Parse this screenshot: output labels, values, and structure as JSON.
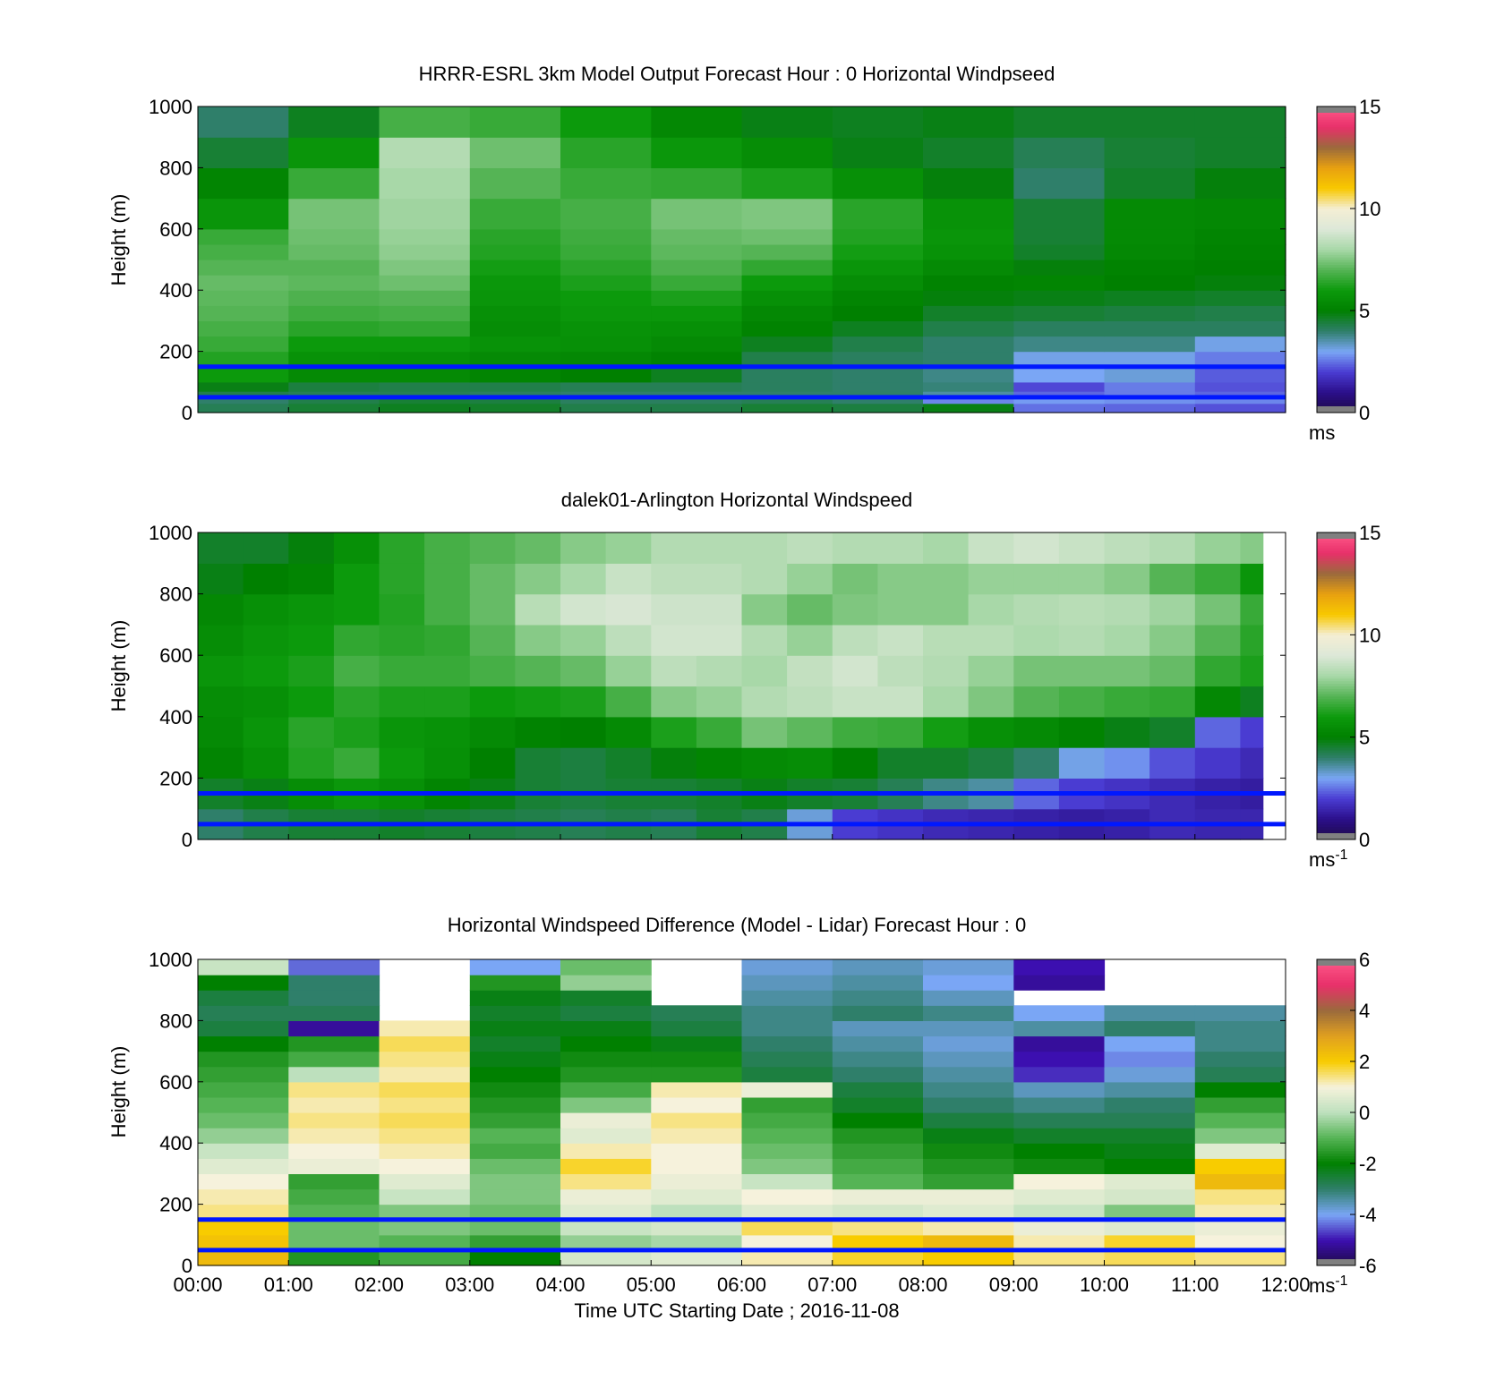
{
  "chart_data": [
    {
      "type": "heatmap",
      "title": "HRRR-ESRL 3km Model Output   Forecast Hour : 0 Horizontal Windpseed",
      "xlabel": "",
      "ylabel": "Height (m)",
      "xlim": [
        0,
        12
      ],
      "ylim": [
        0,
        1000
      ],
      "y_ticks": [
        "0",
        "200",
        "400",
        "600",
        "800",
        "1000"
      ],
      "x_tick_hours": [
        0,
        1,
        2,
        3,
        4,
        5,
        6,
        7,
        8,
        9,
        10,
        11,
        12
      ],
      "x_ticklabels_shown": false,
      "colorbar": {
        "min": 0,
        "max": 15,
        "ticks": [
          "0",
          "5",
          "10",
          "15"
        ],
        "unit": "ms",
        "unit_sup": ""
      },
      "levels_m": [
        0,
        30,
        50,
        70,
        100,
        150,
        200,
        250,
        300,
        350,
        400,
        450,
        500,
        550,
        600,
        700,
        800,
        900,
        1000
      ],
      "columns_hours": [
        0,
        1,
        2,
        3,
        4,
        5,
        6,
        7,
        8,
        9,
        10,
        11,
        12
      ],
      "values": [
        [
          4.2,
          4.5,
          4.7,
          4.6,
          4.3,
          4.3,
          4.5,
          4.4,
          4.8,
          2.5,
          2.4,
          2.2
        ],
        [
          4.0,
          4.3,
          4.5,
          4.4,
          4.1,
          4.1,
          4.2,
          4.0,
          2.7,
          2.9,
          2.8,
          2.7
        ],
        [
          4.3,
          4.2,
          4.2,
          4.1,
          4.0,
          4.0,
          4.0,
          4.0,
          3.6,
          2.4,
          2.6,
          2.4
        ],
        [
          4.8,
          4.4,
          4.3,
          4.3,
          4.2,
          4.2,
          4.1,
          4.0,
          3.9,
          2.1,
          2.6,
          2.2
        ],
        [
          6.0,
          5.4,
          5.4,
          5.2,
          5.0,
          4.7,
          4.1,
          4.0,
          3.8,
          3.0,
          3.2,
          2.3
        ],
        [
          6.3,
          5.7,
          5.6,
          5.4,
          5.3,
          5.1,
          4.3,
          4.1,
          4.0,
          3.1,
          3.1,
          2.6
        ],
        [
          6.6,
          6.0,
          6.0,
          5.7,
          5.6,
          5.4,
          4.7,
          4.3,
          4.0,
          3.8,
          3.8,
          3.1
        ],
        [
          6.8,
          6.4,
          6.5,
          5.5,
          5.7,
          5.6,
          5.1,
          4.7,
          4.3,
          4.1,
          4.1,
          4.1
        ],
        [
          7.0,
          6.7,
          6.8,
          5.6,
          5.9,
          5.9,
          5.3,
          5.0,
          4.6,
          4.5,
          4.4,
          4.3
        ],
        [
          7.1,
          6.9,
          7.0,
          5.8,
          6.0,
          6.2,
          5.6,
          5.2,
          4.9,
          4.8,
          4.7,
          4.6
        ],
        [
          7.2,
          7.1,
          7.3,
          5.9,
          6.2,
          6.6,
          6.0,
          5.5,
          5.1,
          5.2,
          5.0,
          4.9
        ],
        [
          7.0,
          7.0,
          7.5,
          6.1,
          6.4,
          6.9,
          6.5,
          5.8,
          5.4,
          4.9,
          5.1,
          5.0
        ],
        [
          6.8,
          7.2,
          7.7,
          6.3,
          6.6,
          7.1,
          7.0,
          6.1,
          5.7,
          4.6,
          5.3,
          5.1
        ],
        [
          6.6,
          7.3,
          7.8,
          6.4,
          6.7,
          7.2,
          7.3,
          6.3,
          5.8,
          4.5,
          5.4,
          5.2
        ],
        [
          5.8,
          7.4,
          7.9,
          6.6,
          6.8,
          7.4,
          7.5,
          6.4,
          5.7,
          4.5,
          5.4,
          5.3
        ],
        [
          5.2,
          6.6,
          8.0,
          7.0,
          6.6,
          6.5,
          6.2,
          5.6,
          4.9,
          4.0,
          4.6,
          4.9
        ],
        [
          4.5,
          5.8,
          8.2,
          7.3,
          6.4,
          5.9,
          5.5,
          4.8,
          4.6,
          4.2,
          4.5,
          4.6
        ],
        [
          4.0,
          4.7,
          6.8,
          6.6,
          6.0,
          5.3,
          4.8,
          4.7,
          4.8,
          4.6,
          4.6,
          4.6
        ]
      ],
      "overlay_lines_m": [
        150,
        50
      ]
    },
    {
      "type": "heatmap",
      "title": "dalek01-Arlington  Horizontal Windspeed",
      "xlabel": "",
      "ylabel": "Height (m)",
      "xlim": [
        0,
        12
      ],
      "ylim": [
        0,
        1000
      ],
      "y_ticks": [
        "0",
        "200",
        "400",
        "600",
        "800",
        "1000"
      ],
      "x_tick_hours": [
        0,
        1,
        2,
        3,
        4,
        5,
        6,
        7,
        8,
        9,
        10,
        11,
        12
      ],
      "x_ticklabels_shown": false,
      "colorbar": {
        "min": 0,
        "max": 15,
        "ticks": [
          "0",
          "5",
          "10",
          "15"
        ],
        "unit": "ms",
        "unit_sup": "-1"
      },
      "levels_m": [
        0,
        100,
        200,
        300,
        400,
        500,
        600,
        700,
        800,
        900,
        1000
      ],
      "columns_hours": [
        0,
        0.5,
        1,
        1.5,
        2,
        2.5,
        3,
        3.5,
        4,
        4.5,
        5,
        5.5,
        6,
        6.5,
        7,
        7.5,
        8,
        8.5,
        9,
        9.5,
        10,
        10.5,
        11,
        11.5,
        11.75
      ],
      "values": [
        [
          4.0,
          4.3,
          4.5,
          4.5,
          4.6,
          4.5,
          4.4,
          4.3,
          4.2,
          4.3,
          4.2,
          4.5,
          4.3,
          3.2,
          2.0,
          1.8,
          1.6,
          1.5,
          1.4,
          1.3,
          1.4,
          1.6,
          1.5,
          1.5
        ],
        [
          4.6,
          4.8,
          5.5,
          5.9,
          5.6,
          5.2,
          4.8,
          4.5,
          4.4,
          4.5,
          4.5,
          4.6,
          4.8,
          4.6,
          4.5,
          4.2,
          3.8,
          3.6,
          2.4,
          2.0,
          1.8,
          1.6,
          1.4,
          1.3
        ],
        [
          5.2,
          5.6,
          6.3,
          6.6,
          6.0,
          5.6,
          5.0,
          4.5,
          4.4,
          4.6,
          4.9,
          5.2,
          5.4,
          5.5,
          5.0,
          4.6,
          4.6,
          4.4,
          4.0,
          3.1,
          2.8,
          2.2,
          1.9,
          1.6
        ],
        [
          5.4,
          5.8,
          6.4,
          6.2,
          5.8,
          5.7,
          5.4,
          5.1,
          5.0,
          5.4,
          6.2,
          6.6,
          7.4,
          7.1,
          6.7,
          6.6,
          6.1,
          5.6,
          5.4,
          5.1,
          4.8,
          4.6,
          2.4,
          2.0
        ],
        [
          5.5,
          5.6,
          6.0,
          6.4,
          6.2,
          6.2,
          6.0,
          6.1,
          6.2,
          6.8,
          7.6,
          7.8,
          8.2,
          8.4,
          8.6,
          8.6,
          8.0,
          7.5,
          7.0,
          6.8,
          6.6,
          6.5,
          5.3,
          4.7
        ],
        [
          5.8,
          6.0,
          6.2,
          6.8,
          6.6,
          6.6,
          6.8,
          7.0,
          7.2,
          7.8,
          8.4,
          8.2,
          8.0,
          8.5,
          8.8,
          8.4,
          8.2,
          7.8,
          7.4,
          7.4,
          7.4,
          7.2,
          6.5,
          6.2
        ],
        [
          5.5,
          5.8,
          6.0,
          6.5,
          6.4,
          6.5,
          7.0,
          7.6,
          7.8,
          8.4,
          8.8,
          8.8,
          8.2,
          7.8,
          8.4,
          8.6,
          8.3,
          8.3,
          8.1,
          8.2,
          8.0,
          7.6,
          7.0,
          6.4
        ],
        [
          5.3,
          5.6,
          5.8,
          6.0,
          6.3,
          6.8,
          7.2,
          8.3,
          8.8,
          8.9,
          8.7,
          8.7,
          7.6,
          7.2,
          7.5,
          7.6,
          7.6,
          8.0,
          8.2,
          8.3,
          8.2,
          7.9,
          7.4,
          6.6
        ],
        [
          4.8,
          5.0,
          5.2,
          6.0,
          6.4,
          6.8,
          7.2,
          7.6,
          8.0,
          8.6,
          8.4,
          8.4,
          8.2,
          7.8,
          7.4,
          7.6,
          7.6,
          7.8,
          7.8,
          7.8,
          7.6,
          7.0,
          6.6,
          5.8
        ],
        [
          4.6,
          4.6,
          4.9,
          5.6,
          6.4,
          6.8,
          7.0,
          7.2,
          7.6,
          7.8,
          8.2,
          8.2,
          8.2,
          8.4,
          8.2,
          8.2,
          8.0,
          8.6,
          8.8,
          8.6,
          8.4,
          8.2,
          7.8,
          7.6
        ]
      ],
      "overlay_lines_m": [
        150,
        50
      ]
    },
    {
      "type": "heatmap",
      "title": "Horizontal Windspeed Difference (Model - Lidar) Forecast Hour : 0",
      "xlabel": "Time UTC  Starting Date ; 2016-11-08",
      "ylabel": "Height (m)",
      "xlim": [
        0,
        12
      ],
      "ylim": [
        0,
        1000
      ],
      "y_ticks": [
        "0",
        "200",
        "400",
        "600",
        "800",
        "1000"
      ],
      "x_tick_hours": [
        0,
        1,
        2,
        3,
        4,
        5,
        6,
        7,
        8,
        9,
        10,
        11,
        12
      ],
      "x_ticklabels": [
        "00:00",
        "01:00",
        "02:00",
        "03:00",
        "04:00",
        "05:00",
        "06:00",
        "07:00",
        "08:00",
        "09:00",
        "10:00",
        "11:00",
        "12:00"
      ],
      "x_ticklabels_shown": true,
      "colorbar": {
        "min": -6,
        "max": 6,
        "ticks": [
          "-6",
          "-4",
          "-2",
          "0",
          "2",
          "4",
          "6"
        ],
        "unit": "ms",
        "unit_sup": "-1"
      },
      "levels_m": [
        0,
        50,
        100,
        150,
        200,
        250,
        300,
        350,
        400,
        450,
        500,
        550,
        600,
        650,
        700,
        750,
        800,
        850,
        900,
        950,
        1000
      ],
      "columns_hours": [
        0,
        1,
        2,
        3,
        4,
        5,
        6,
        7,
        8,
        9,
        10,
        11,
        12
      ],
      "values": [
        [
          2.4,
          -1.6,
          -1.2,
          -2.0,
          0.4,
          0.6,
          1.2,
          1.8,
          2.0,
          1.4,
          1.6,
          1.4
        ],
        [
          2.2,
          -0.8,
          -1.0,
          -1.4,
          -0.4,
          -0.2,
          1.0,
          2.0,
          2.4,
          1.2,
          1.8,
          1.0
        ],
        [
          2.0,
          -0.8,
          -0.6,
          -0.8,
          0.2,
          0.4,
          1.6,
          1.4,
          1.2,
          0.8,
          0.6,
          0.8
        ],
        [
          1.4,
          -1.0,
          -0.6,
          -0.8,
          0.6,
          0.0,
          0.6,
          0.4,
          0.6,
          0.2,
          -0.6,
          1.2
        ],
        [
          1.2,
          -1.2,
          0.2,
          -0.6,
          0.8,
          0.6,
          1.0,
          0.8,
          0.8,
          0.6,
          0.4,
          1.4
        ],
        [
          1.0,
          -1.4,
          0.6,
          -0.6,
          1.4,
          0.8,
          0.2,
          -1.0,
          -1.4,
          1.0,
          0.6,
          2.4
        ],
        [
          0.6,
          0.8,
          1.0,
          -0.8,
          1.8,
          1.0,
          -0.6,
          -1.2,
          -1.6,
          -1.8,
          -2.0,
          2.0
        ],
        [
          0.2,
          1.0,
          1.2,
          -1.2,
          1.2,
          1.0,
          -0.8,
          -1.4,
          -1.8,
          -2.0,
          -2.2,
          0.6
        ],
        [
          -0.4,
          1.2,
          1.4,
          -1.0,
          0.6,
          1.2,
          -1.0,
          -1.6,
          -2.2,
          -2.4,
          -2.4,
          -0.6
        ],
        [
          -0.8,
          1.4,
          1.6,
          -1.4,
          0.8,
          1.4,
          -1.2,
          -2.0,
          -2.6,
          -2.8,
          -2.8,
          -1.0
        ],
        [
          -1.0,
          1.2,
          1.4,
          -1.6,
          -0.6,
          1.0,
          -1.4,
          -2.4,
          -3.0,
          -3.2,
          -3.0,
          -1.4
        ],
        [
          -1.2,
          1.4,
          1.6,
          -1.8,
          -1.2,
          1.2,
          0.8,
          -2.6,
          -3.2,
          -3.6,
          -3.4,
          -2.0
        ],
        [
          -1.4,
          0.0,
          1.2,
          -2.0,
          -1.6,
          -1.6,
          -2.6,
          -3.0,
          -3.4,
          -4.8,
          -3.8,
          -2.8
        ],
        [
          -1.6,
          -1.2,
          1.4,
          -2.2,
          -1.8,
          -1.8,
          -2.8,
          -3.2,
          -3.6,
          -5.0,
          -4.2,
          -3.0
        ],
        [
          -2.0,
          -1.6,
          1.6,
          -2.4,
          -2.0,
          -2.2,
          -3.0,
          -3.4,
          -3.8,
          -5.2,
          -4.0,
          -3.2
        ],
        [
          -2.6,
          -5.2,
          1.2,
          -2.2,
          -2.2,
          -2.6,
          -3.2,
          -3.6,
          -3.6,
          -3.4,
          -3.0,
          -3.2
        ],
        [
          -2.8,
          -2.8,
          null,
          -2.4,
          -2.6,
          -2.8,
          -3.2,
          -3.0,
          -3.2,
          -4.0,
          -3.4,
          -3.4
        ],
        [
          -2.6,
          -3.0,
          null,
          -2.2,
          -2.4,
          null,
          -3.4,
          -3.2,
          -3.6,
          null,
          null,
          null
        ],
        [
          -2.0,
          -3.0,
          null,
          -1.6,
          -0.4,
          null,
          -3.6,
          -3.4,
          -4.0,
          -5.2,
          null,
          null
        ],
        [
          0.2,
          -4.4,
          null,
          -4.0,
          -0.8,
          null,
          -3.8,
          -3.6,
          -3.8,
          -5.0,
          null,
          null
        ]
      ],
      "overlay_lines_m": [
        150,
        50
      ]
    }
  ],
  "colors": {
    "overlay_line": "#0018ff",
    "speed_colormap": [
      "#1e0a46",
      "#2b0f8a",
      "#4a3cd2",
      "#7aa6f5",
      "#2f7f6a",
      "#008000",
      "#0c9a0c",
      "#55b455",
      "#a8d8a8",
      "#dde8d8",
      "#f4eed4",
      "#f8c800",
      "#e8a010",
      "#9a6a3c",
      "#e8306a",
      "#ff5a8a"
    ],
    "diff_colormap": [
      "#1e0a46",
      "#3c0fb0",
      "#7aa6f5",
      "#2f7f6a",
      "#008000",
      "#55b455",
      "#bde0bd",
      "#f6f2dc",
      "#f8cc00",
      "#e0a020",
      "#9a6a3c",
      "#e8306a",
      "#ff5a8a"
    ]
  }
}
